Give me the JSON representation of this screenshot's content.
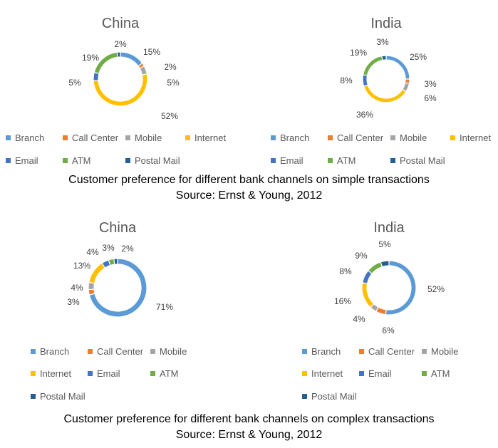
{
  "chart_data": [
    {
      "type": "donut",
      "title": "China",
      "categories": [
        "Branch",
        "Call Center",
        "Mobile",
        "Internet",
        "Email",
        "ATM",
        "Postal Mail"
      ],
      "values": [
        15,
        2,
        5,
        52,
        5,
        19,
        2
      ],
      "labels": [
        "15%",
        "2%",
        "5%",
        "52%",
        "5%",
        "19%",
        "2%"
      ],
      "legend_position": "bottom"
    },
    {
      "type": "donut",
      "title": "India",
      "categories": [
        "Branch",
        "Call Center",
        "Mobile",
        "Internet",
        "Email",
        "ATM",
        "Postal Mail"
      ],
      "values": [
        25,
        3,
        6,
        36,
        8,
        19,
        3
      ],
      "labels": [
        "25%",
        "3%",
        "6%",
        "36%",
        "8%",
        "19%",
        "3%"
      ],
      "legend_position": "bottom"
    },
    {
      "type": "donut",
      "title": "China",
      "categories": [
        "Branch",
        "Call Center",
        "Mobile",
        "Internet",
        "Email",
        "ATM",
        "Postal Mail"
      ],
      "values": [
        71,
        3,
        4,
        13,
        4,
        3,
        2
      ],
      "labels": [
        "71%",
        "3%",
        "4%",
        "13%",
        "4%",
        "3%",
        "2%"
      ],
      "legend_position": "bottom"
    },
    {
      "type": "donut",
      "title": "India",
      "categories": [
        "Branch",
        "Call Center",
        "Mobile",
        "Internet",
        "Email",
        "ATM",
        "Postal Mail"
      ],
      "values": [
        52,
        6,
        4,
        16,
        8,
        9,
        5
      ],
      "labels": [
        "52%",
        "6%",
        "4%",
        "16%",
        "8%",
        "9%",
        "5%"
      ],
      "legend_position": "bottom"
    }
  ],
  "colors": {
    "Branch": "#5B9BD5",
    "Call Center": "#ED7D31",
    "Mobile": "#A5A5A5",
    "Internet": "#FFC000",
    "Email": "#4472C4",
    "ATM": "#70AD47",
    "Postal Mail": "#255E91"
  },
  "captions": {
    "simple": {
      "line1": "Customer preference for different bank channels on simple transactions",
      "line2": "Source: Ernst & Young, 2012"
    },
    "complex": {
      "line1": "Customer preference for different bank channels on complex transactions",
      "line2": "Source: Ernst & Young, 2012"
    }
  }
}
